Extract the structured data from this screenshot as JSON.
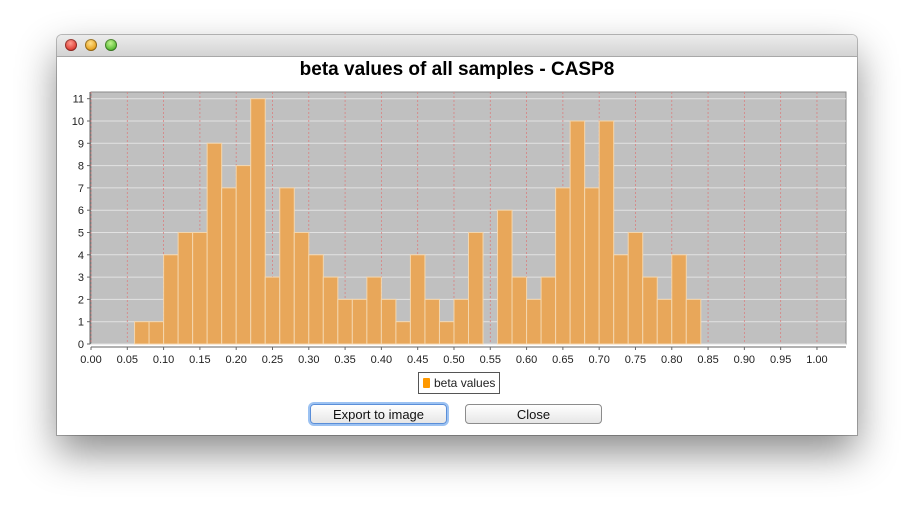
{
  "window": {
    "controls": [
      "close-light",
      "minimize-light",
      "zoom-light"
    ]
  },
  "legend": {
    "label": "beta values"
  },
  "buttons": {
    "export": "Export to image",
    "close": "Close"
  },
  "colors": {
    "plot_background": "#c0c0c0",
    "bar_fill": "#e8a75a",
    "bar_edge": "#f4d6ad",
    "vertical_grid": "#d98080",
    "horizontal_grid": "#e2e2e2",
    "legend_swatch": "#ff9900"
  },
  "chart_data": {
    "type": "bar",
    "title": "beta values of all samples - CASP8",
    "xlabel": "",
    "ylabel": "",
    "xlim": [
      0.0,
      1.04
    ],
    "ylim": [
      0,
      11.3
    ],
    "bin_width": 0.02,
    "x_ticks": [
      "0.00",
      "0.05",
      "0.10",
      "0.15",
      "0.20",
      "0.25",
      "0.30",
      "0.35",
      "0.40",
      "0.45",
      "0.50",
      "0.55",
      "0.60",
      "0.65",
      "0.70",
      "0.75",
      "0.80",
      "0.85",
      "0.90",
      "0.95",
      "1.00"
    ],
    "y_ticks": [
      "0",
      "1",
      "2",
      "3",
      "4",
      "5",
      "6",
      "7",
      "8",
      "9",
      "10",
      "11"
    ],
    "grid": true,
    "legend_position": "bottom-center",
    "series": [
      {
        "name": "beta values",
        "x": [
          0.06,
          0.08,
          0.1,
          0.12,
          0.14,
          0.16,
          0.18,
          0.2,
          0.22,
          0.24,
          0.26,
          0.28,
          0.3,
          0.32,
          0.34,
          0.36,
          0.38,
          0.4,
          0.42,
          0.44,
          0.46,
          0.48,
          0.5,
          0.52,
          0.56,
          0.58,
          0.6,
          0.62,
          0.64,
          0.66,
          0.68,
          0.7,
          0.72,
          0.74,
          0.76,
          0.78,
          0.8,
          0.82
        ],
        "values": [
          1,
          1,
          4,
          5,
          5,
          9,
          7,
          8,
          11,
          3,
          7,
          5,
          4,
          3,
          2,
          2,
          3,
          2,
          1,
          4,
          2,
          1,
          2,
          5,
          6,
          3,
          2,
          3,
          7,
          10,
          7,
          10,
          4,
          5,
          3,
          2,
          4,
          2
        ]
      }
    ]
  }
}
